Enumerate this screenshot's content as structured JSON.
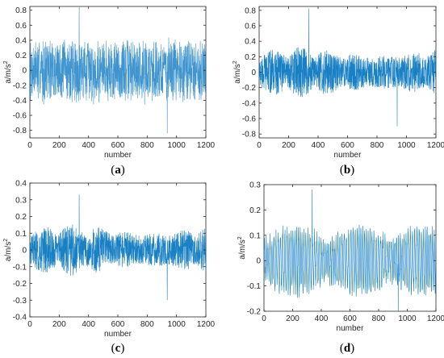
{
  "figure": {
    "panels_caption_format": "(label)"
  },
  "chart_data": [
    {
      "type": "line",
      "panel_label": "a",
      "xlabel": "number",
      "ylabel": "a/m/s",
      "ylabel_superscript": "2",
      "xlim": [
        0,
        1200
      ],
      "ylim": [
        -0.9,
        0.85
      ],
      "xticks": [
        0,
        200,
        400,
        600,
        800,
        1000,
        1200
      ],
      "yticks": [
        -0.8,
        -0.6,
        -0.4,
        -0.2,
        0,
        0.2,
        0.4,
        0.6,
        0.8
      ],
      "ytick_labels": [
        "-0.8",
        "-0.6",
        "-0.4",
        "-0.2",
        "0",
        "0.2",
        "0.4",
        "0.6",
        "0.8"
      ],
      "series": [
        {
          "style": "light",
          "amplitude": 0.42,
          "peak": 0.84,
          "trough": -0.84,
          "n": 1200
        }
      ],
      "line_color": "#0072bd"
    },
    {
      "type": "line",
      "panel_label": "b",
      "xlabel": "number",
      "ylabel": "a/m/s",
      "ylabel_superscript": "2",
      "xlim": [
        0,
        1200
      ],
      "ylim": [
        -0.85,
        0.85
      ],
      "xticks": [
        0,
        200,
        400,
        600,
        800,
        1000,
        1200
      ],
      "yticks": [
        -0.8,
        -0.6,
        -0.4,
        -0.2,
        0,
        0.2,
        0.4,
        0.6,
        0.8
      ],
      "ytick_labels": [
        "-0.8",
        "-0.6",
        "-0.4",
        "-0.2",
        "0",
        "0.2",
        "0.4",
        "0.6",
        "0.8"
      ],
      "series": [
        {
          "style": "dense",
          "amplitude": 0.3,
          "peak": 0.82,
          "trough": -0.7,
          "n": 1200
        }
      ],
      "line_color": "#0072bd"
    },
    {
      "type": "line",
      "panel_label": "c",
      "xlabel": "number",
      "ylabel": "a/m/s",
      "ylabel_superscript": "2",
      "xlim": [
        0,
        1200
      ],
      "ylim": [
        -0.4,
        0.4
      ],
      "xticks": [
        0,
        200,
        400,
        600,
        800,
        1000,
        1200
      ],
      "yticks": [
        -0.4,
        -0.3,
        -0.2,
        -0.1,
        0,
        0.1,
        0.2,
        0.3,
        0.4
      ],
      "ytick_labels": [
        "-0.4",
        "-0.3",
        "-0.2",
        "-0.1",
        "0",
        "0.1",
        "0.2",
        "0.3",
        "0.4"
      ],
      "series": [
        {
          "style": "dense",
          "amplitude": 0.14,
          "peak": 0.33,
          "trough": -0.3,
          "n": 1200
        }
      ],
      "line_color": "#0072bd"
    },
    {
      "type": "line",
      "panel_label": "d",
      "xlabel": "number",
      "ylabel": "a/m/s",
      "ylabel_superscript": "2",
      "xlim": [
        0,
        1200
      ],
      "ylim": [
        -0.2,
        0.3
      ],
      "xticks": [
        0,
        200,
        400,
        600,
        800,
        1000,
        1200
      ],
      "yticks": [
        -0.2,
        -0.1,
        0,
        0.1,
        0.2,
        0.3
      ],
      "ytick_labels": [
        "-0.2",
        "-0.1",
        "0",
        "0.1",
        "0.2",
        "0.3"
      ],
      "series": [
        {
          "style": "oscillatory",
          "amplitude": 0.12,
          "peak": 0.28,
          "trough": -0.2,
          "n": 1200
        }
      ],
      "line_color": "#0072bd"
    }
  ]
}
